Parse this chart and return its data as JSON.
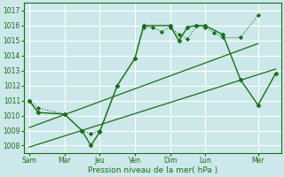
{
  "xlabel": "Pression niveau de la mer( hPa )",
  "bg_color": "#cce8ea",
  "grid_color": "#ffffff",
  "line_color": "#1a6e1a",
  "ylim": [
    1007.5,
    1017.5
  ],
  "yticks": [
    1008,
    1009,
    1010,
    1011,
    1012,
    1013,
    1014,
    1015,
    1016,
    1017
  ],
  "xtick_labels": [
    "Sam",
    "Mar",
    "Jeu",
    "Ven",
    "Dim",
    "Lun",
    "Mer"
  ],
  "xtick_positions": [
    0,
    2,
    4,
    6,
    8,
    10,
    13
  ],
  "xlim": [
    -0.3,
    14.3
  ],
  "series_dotted_x": [
    0,
    0.5,
    2,
    3,
    3.5,
    4,
    5,
    6,
    6.5,
    7,
    7.5,
    8,
    8.5,
    9,
    9.5,
    10,
    10.5,
    11,
    12,
    13
  ],
  "series_dotted_y": [
    1011.0,
    1010.5,
    1010.1,
    1009.0,
    1008.8,
    1009.0,
    1012.0,
    1013.8,
    1015.9,
    1015.9,
    1015.6,
    1015.9,
    1015.4,
    1015.1,
    1016.0,
    1015.9,
    1015.5,
    1015.2,
    1015.2,
    1016.7
  ],
  "series_solid_x": [
    0,
    0.5,
    2,
    3,
    3.5,
    4,
    5,
    6,
    6.5,
    8,
    8.5,
    9,
    9.5,
    10,
    11,
    12,
    13,
    14
  ],
  "series_solid_y": [
    1011.0,
    1010.2,
    1010.1,
    1009.0,
    1008.0,
    1008.9,
    1012.0,
    1013.8,
    1016.0,
    1016.0,
    1015.0,
    1015.9,
    1016.0,
    1016.0,
    1015.4,
    1012.4,
    1010.7,
    1012.8
  ],
  "trend1_x": [
    0,
    13
  ],
  "trend1_y": [
    1009.2,
    1014.8
  ],
  "trend2_x": [
    0,
    14
  ],
  "trend2_y": [
    1007.9,
    1013.1
  ]
}
